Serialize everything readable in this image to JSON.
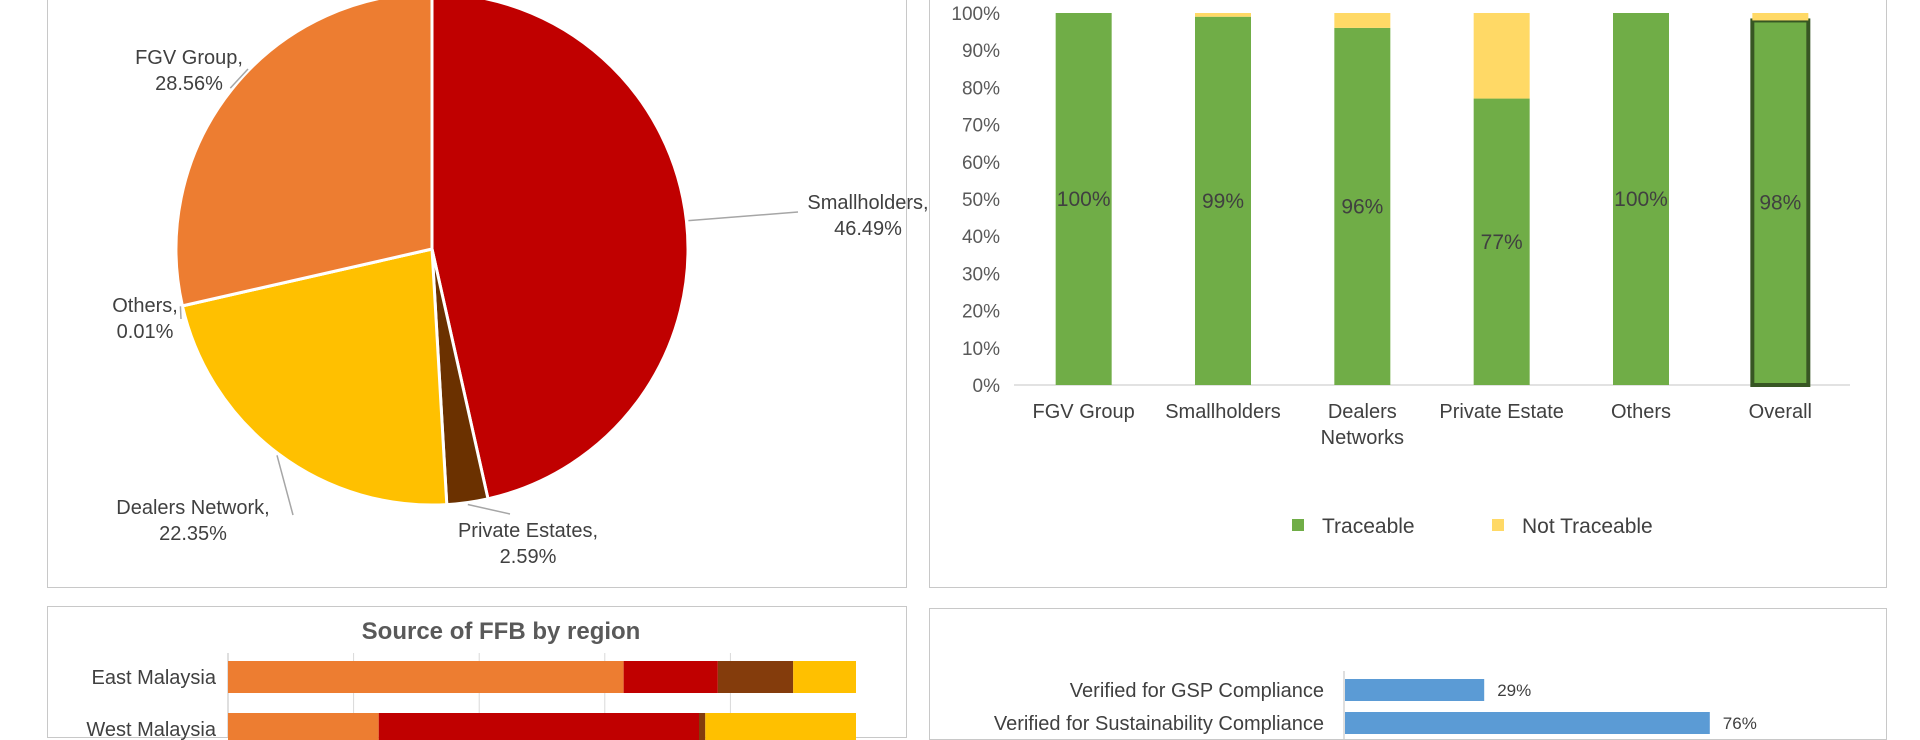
{
  "chart_data": [
    {
      "type": "pie",
      "slices": [
        {
          "label": "Smallholders,",
          "value_text": "46.49%",
          "value": 46.49,
          "color": "#c00000"
        },
        {
          "label": "Private Estates,",
          "value_text": "2.59%",
          "value": 2.59,
          "color": "#6b3100"
        },
        {
          "label": "Dealers Network,",
          "value_text": "22.35%",
          "value": 22.35,
          "color": "#ffc000"
        },
        {
          "label": "Others,",
          "value_text": "0.01%",
          "value": 0.01,
          "color": "#d9d9d9"
        },
        {
          "label": "FGV Group,",
          "value_text": "28.56%",
          "value": 28.56,
          "color": "#ed7d31"
        }
      ]
    },
    {
      "type": "bar",
      "stacked": true,
      "categories": [
        [
          "FGV Group"
        ],
        [
          "Smallholders"
        ],
        [
          "Dealers",
          "Networks"
        ],
        [
          "Private Estate"
        ],
        [
          "Others"
        ],
        [
          "Overall"
        ]
      ],
      "series": [
        {
          "name": "Traceable",
          "color": "#70ad47",
          "values": [
            100,
            99,
            96,
            77,
            100,
            98
          ],
          "labels": [
            "100%",
            "99%",
            "96%",
            "77%",
            "100%",
            "98%"
          ]
        },
        {
          "name": "Not Traceable",
          "color": "#ffd966",
          "values": [
            0,
            1,
            4,
            23,
            0,
            2
          ]
        }
      ],
      "ylim": [
        0,
        100
      ],
      "yticks": [
        "0%",
        "10%",
        "20%",
        "30%",
        "40%",
        "50%",
        "60%",
        "70%",
        "80%",
        "90%",
        "100%"
      ],
      "legend_position": "bottom"
    },
    {
      "type": "bar",
      "orientation": "horizontal",
      "stacked": true,
      "title": "Source of FFB by region",
      "categories": [
        "East Malaysia",
        "West Malaysia"
      ],
      "series": [
        {
          "color": "#ed7d31",
          "values": [
            63,
            24
          ]
        },
        {
          "color": "#c00000",
          "values": [
            15,
            51
          ]
        },
        {
          "color": "#843c0c",
          "values": [
            12,
            1
          ]
        },
        {
          "color": "#ffc000",
          "values": [
            10,
            24
          ]
        }
      ],
      "xlim": [
        0,
        100
      ]
    },
    {
      "type": "bar",
      "orientation": "horizontal",
      "categories": [
        "Verified for GSP Compliance",
        "Verified for Sustainability Compliance"
      ],
      "values": [
        29,
        76
      ],
      "labels": [
        "29%",
        "76%"
      ],
      "color": "#5b9bd5"
    }
  ]
}
